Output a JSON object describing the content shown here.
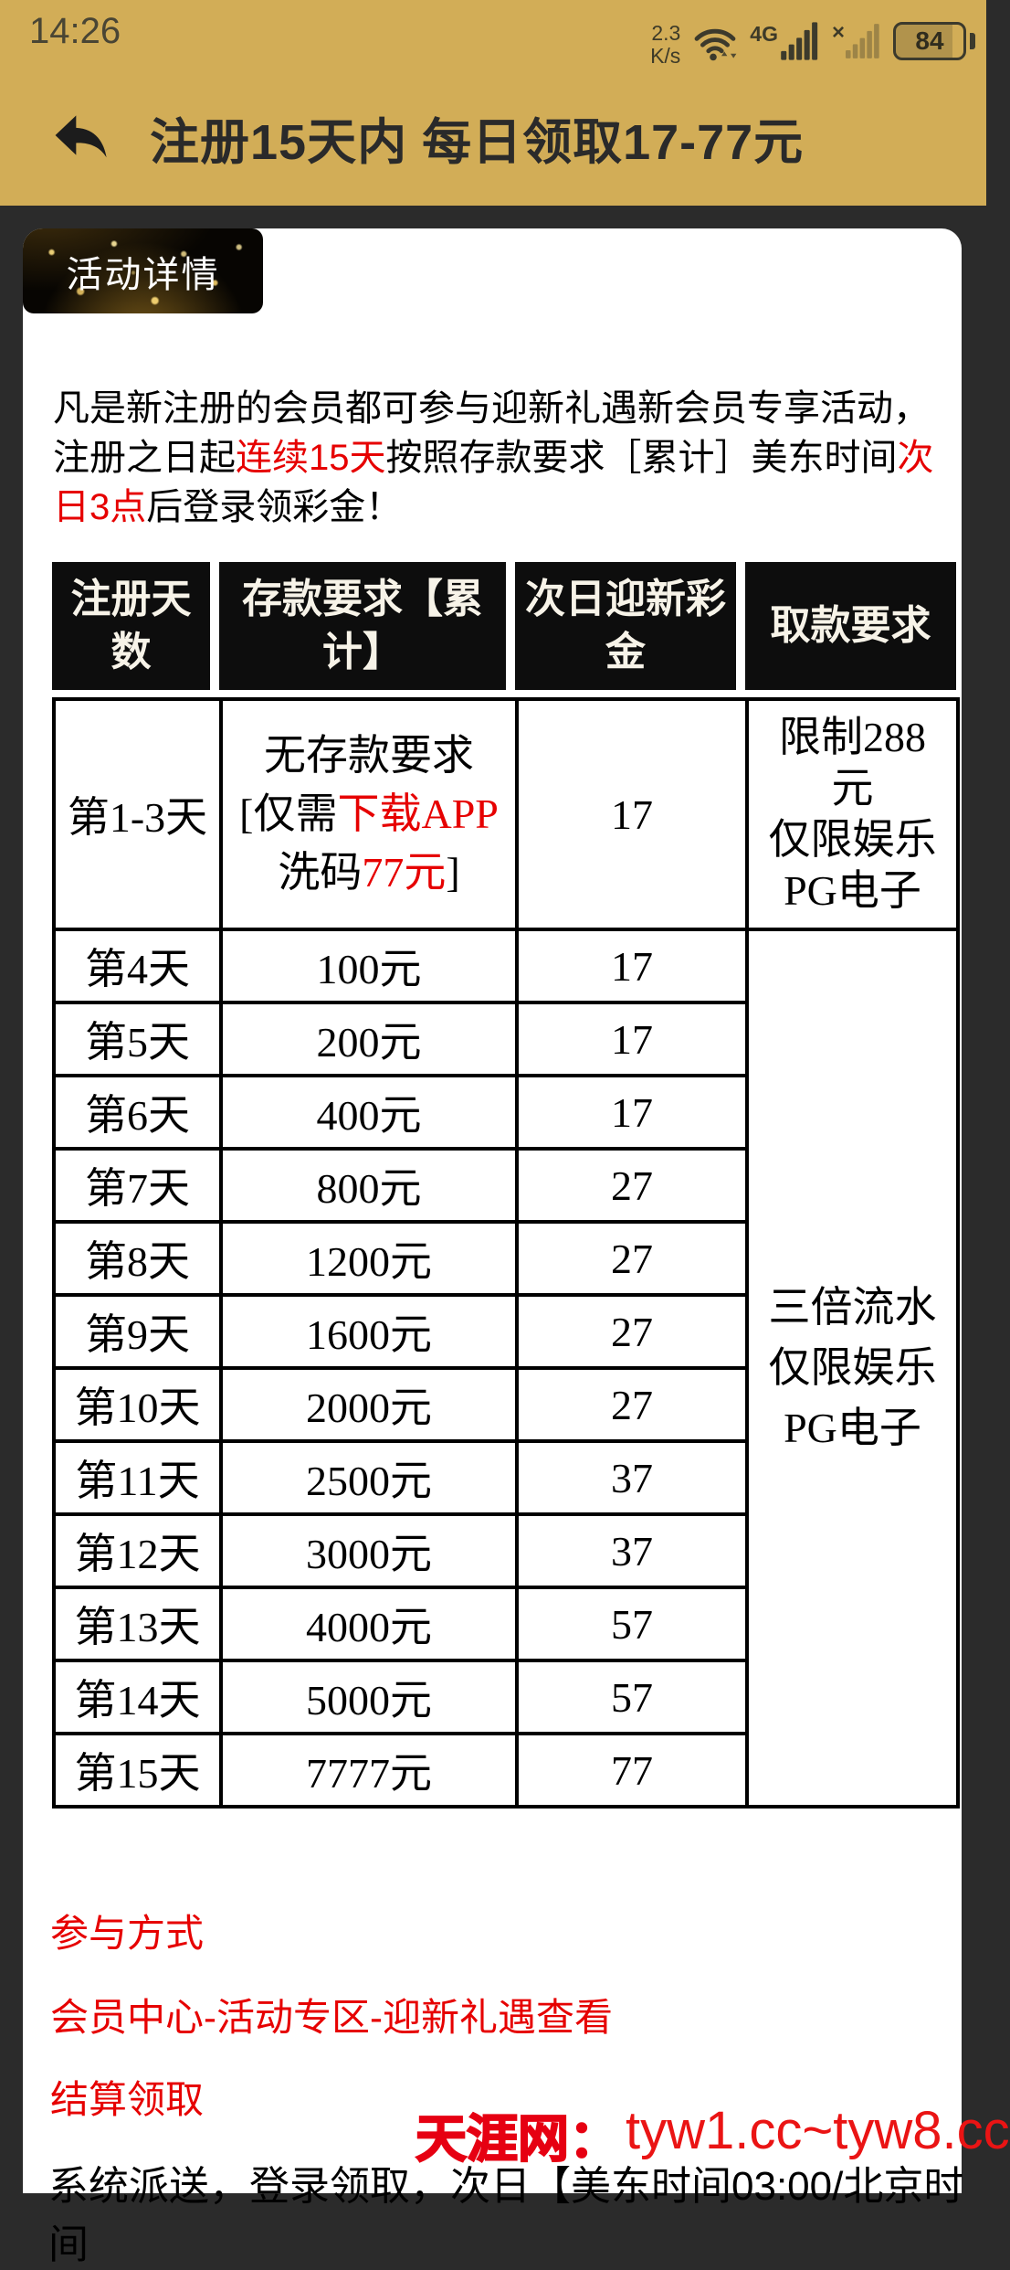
{
  "colors": {
    "accent_gold": "#d2ad57",
    "background_dark": "#2b2b2b",
    "highlight_red": "#e60000",
    "watermark_red": "#e60012",
    "table_header_bg": "#0d0d0d",
    "table_header_text": "#f7f3e8"
  },
  "status_bar": {
    "time": "14:26",
    "net_speed_value": "2.3",
    "net_speed_unit": "K/s",
    "network_type": "4G",
    "sim2_mark": "×",
    "battery_percent": "84"
  },
  "header": {
    "title": "注册15天内 每日领取17-77元"
  },
  "banner": {
    "label": "活动详情"
  },
  "intro": {
    "segments": [
      {
        "text": "凡是新注册的会员都可参与迎新礼遇新会员专享活动，注册之日起",
        "style": "black"
      },
      {
        "text": "连续15天",
        "style": "red"
      },
      {
        "text": "按照存款要求［累计］美东时间",
        "style": "black"
      },
      {
        "text": "次日3点",
        "style": "red"
      },
      {
        "text": "后登录领彩金！",
        "style": "black"
      }
    ]
  },
  "table": {
    "headers": [
      "注册天\n数",
      "存款要求【累\n计】",
      "次日迎新彩\n金",
      "取款要求"
    ],
    "first_row": {
      "day": "第1-3天",
      "deposit_segments": [
        {
          "text": "无存款要求\n[仅需",
          "style": "black"
        },
        {
          "text": "下载APP",
          "style": "red"
        },
        {
          "text": "\n洗码",
          "style": "black"
        },
        {
          "text": "77元",
          "style": "red"
        },
        {
          "text": "]",
          "style": "black"
        }
      ],
      "bonus": "17",
      "withdraw": "限制288\n元\n仅限娱乐\nPG电子"
    },
    "rows": [
      {
        "day": "第4天",
        "deposit": "100元",
        "bonus": "17"
      },
      {
        "day": "第5天",
        "deposit": "200元",
        "bonus": "17"
      },
      {
        "day": "第6天",
        "deposit": "400元",
        "bonus": "17"
      },
      {
        "day": "第7天",
        "deposit": "800元",
        "bonus": "27"
      },
      {
        "day": "第8天",
        "deposit": "1200元",
        "bonus": "27"
      },
      {
        "day": "第9天",
        "deposit": "1600元",
        "bonus": "27"
      },
      {
        "day": "第10天",
        "deposit": "2000元",
        "bonus": "27"
      },
      {
        "day": "第11天",
        "deposit": "2500元",
        "bonus": "37"
      },
      {
        "day": "第12天",
        "deposit": "3000元",
        "bonus": "37"
      },
      {
        "day": "第13天",
        "deposit": "4000元",
        "bonus": "57"
      },
      {
        "day": "第14天",
        "deposit": "5000元",
        "bonus": "57"
      },
      {
        "day": "第15天",
        "deposit": "7777元",
        "bonus": "77"
      }
    ],
    "merged_withdraw": "三倍流水\n仅限娱乐\nPG电子"
  },
  "footer": {
    "lines": [
      "参与方式",
      "会员中心-活动专区-迎新礼遇查看",
      "结算领取"
    ],
    "bottom_text": "系统派送，登录领取，次日【美东时间03:00/北京时间"
  },
  "watermark": {
    "site_name": "天涯网：",
    "urls": "tyw1.cc~tyw8.cc"
  }
}
